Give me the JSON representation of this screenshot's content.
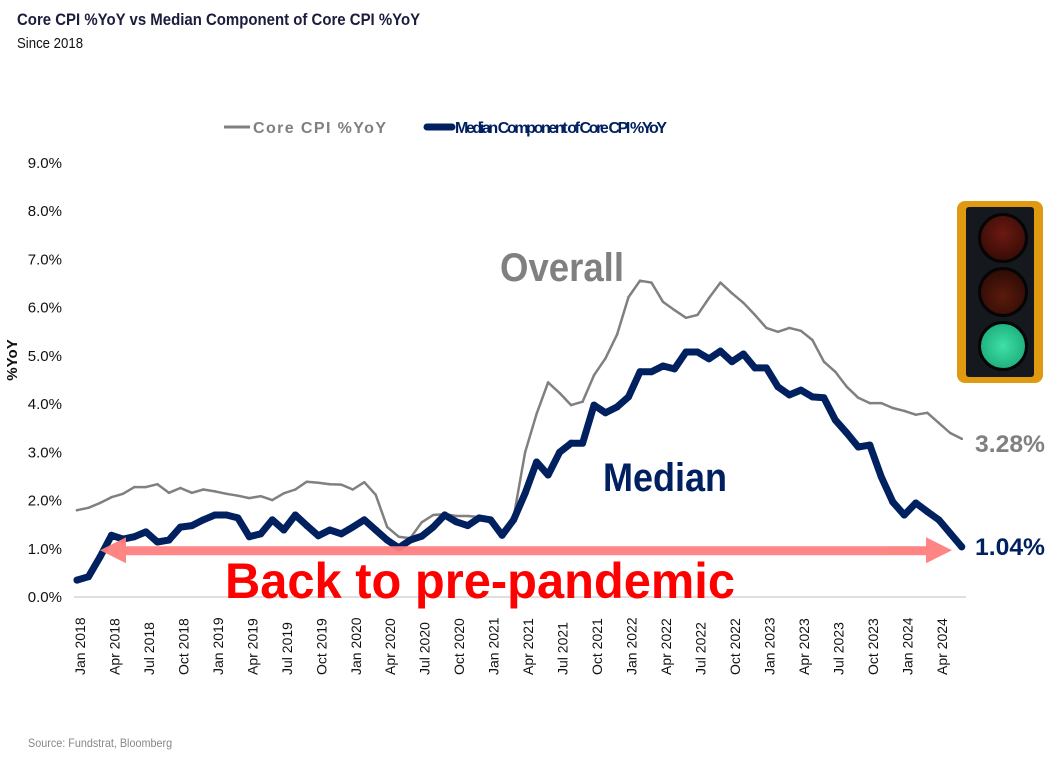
{
  "title": "Core CPI %YoY vs Median Component of Core CPI %YoY",
  "subtitle": "Since 2018",
  "source": "Source: Fundstrat, Bloomberg",
  "traffic_light_icon": "traffic-light-green",
  "chart_data": {
    "type": "line",
    "ylabel": "%YoY",
    "ylim": [
      0,
      9
    ],
    "yticks": [
      "0.0%",
      "1.0%",
      "2.0%",
      "3.0%",
      "4.0%",
      "5.0%",
      "6.0%",
      "7.0%",
      "8.0%",
      "9.0%"
    ],
    "x_start": "Jan 2018",
    "x_end": "Jun 2024",
    "xtick_labels": [
      "Jan 2018",
      "Apr 2018",
      "Jul 2018",
      "Oct 2018",
      "Jan 2019",
      "Apr 2019",
      "Jul 2019",
      "Oct 2019",
      "Jan 2020",
      "Apr 2020",
      "Jul 2020",
      "Oct 2020",
      "Jan 2021",
      "Apr 2021",
      "Jul 2021",
      "Oct 2021",
      "Jan 2022",
      "Apr 2022",
      "Jul 2022",
      "Oct 2022",
      "Jan 2023",
      "Apr 2023",
      "Jul 2023",
      "Oct 2023",
      "Jan 2024",
      "Apr 2024"
    ],
    "grid": false,
    "legend_position": "top",
    "series": [
      {
        "name": "Core CPI %YoY",
        "color": "#808080",
        "values": [
          1.8,
          1.85,
          1.95,
          2.07,
          2.14,
          2.28,
          2.28,
          2.34,
          2.16,
          2.26,
          2.16,
          2.23,
          2.19,
          2.14,
          2.1,
          2.05,
          2.09,
          2.01,
          2.15,
          2.23,
          2.39,
          2.37,
          2.34,
          2.33,
          2.23,
          2.38,
          2.12,
          1.45,
          1.25,
          1.22,
          1.55,
          1.7,
          1.72,
          1.68,
          1.68,
          1.66,
          1.53,
          1.37,
          1.65,
          3.0,
          3.8,
          4.45,
          4.23,
          3.98,
          4.05,
          4.6,
          4.95,
          5.44,
          6.22,
          6.56,
          6.52,
          6.12,
          5.95,
          5.79,
          5.85,
          6.2,
          6.52,
          6.3,
          6.1,
          5.85,
          5.58,
          5.5,
          5.58,
          5.52,
          5.33,
          4.88,
          4.67,
          4.36,
          4.13,
          4.02,
          4.02,
          3.92,
          3.86,
          3.78,
          3.82,
          3.61,
          3.4,
          3.28
        ]
      },
      {
        "name": "Median Component of Core CPI %YoY",
        "color": "#002060",
        "values": [
          0.35,
          0.42,
          0.83,
          1.28,
          1.2,
          1.25,
          1.35,
          1.14,
          1.18,
          1.45,
          1.48,
          1.6,
          1.7,
          1.7,
          1.64,
          1.25,
          1.31,
          1.6,
          1.39,
          1.7,
          1.48,
          1.27,
          1.39,
          1.31,
          1.45,
          1.6,
          1.39,
          1.18,
          1.02,
          1.18,
          1.26,
          1.45,
          1.7,
          1.56,
          1.48,
          1.64,
          1.6,
          1.28,
          1.6,
          2.15,
          2.8,
          2.53,
          3.0,
          3.19,
          3.19,
          3.98,
          3.82,
          3.94,
          4.15,
          4.67,
          4.67,
          4.79,
          4.73,
          5.08,
          5.08,
          4.94,
          5.1,
          4.88,
          5.04,
          4.75,
          4.75,
          4.36,
          4.19,
          4.29,
          4.15,
          4.13,
          3.67,
          3.4,
          3.11,
          3.15,
          2.49,
          1.97,
          1.7,
          1.95,
          1.77,
          1.6,
          1.32,
          1.04
        ]
      }
    ],
    "annotations": {
      "overall": "Overall",
      "median": "Median",
      "core_last": "3.28%",
      "median_last": "1.04%",
      "arrow_text": "Back to pre-pandemic",
      "arrow_level": 0.97,
      "arrow_color": "#ff7f7f"
    }
  }
}
